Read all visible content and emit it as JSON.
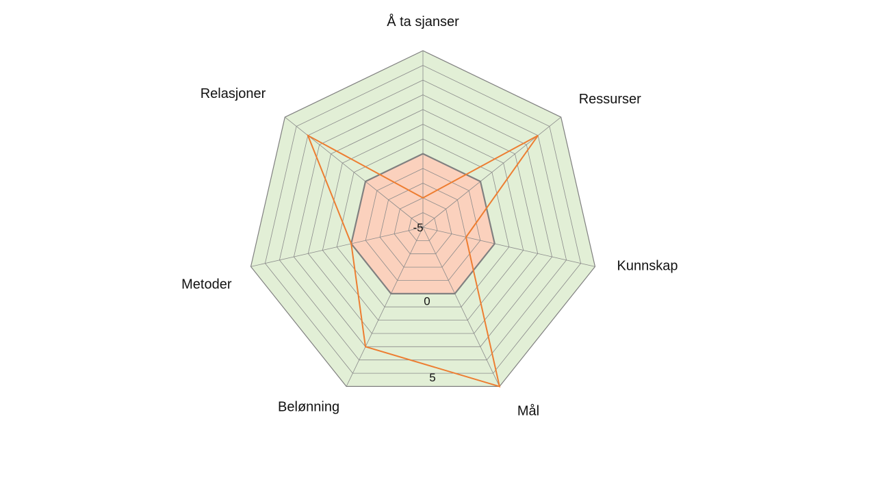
{
  "chart_data": {
    "type": "radar",
    "categories": [
      "Å ta sjanser",
      "Ressurser",
      "Kunnskap",
      "Mål",
      "Belønning",
      "Metoder",
      "Relasjoner"
    ],
    "rlim": [
      -5,
      7
    ],
    "tick_labels": [
      "-5",
      "0",
      "5"
    ],
    "grid": true,
    "legend": "none",
    "bands": [
      {
        "from": -5,
        "to": 0,
        "color": "#fbd1bd"
      },
      {
        "from": 0,
        "to": 7,
        "color": "#e2efd6"
      }
    ],
    "series": [
      {
        "values": [
          0,
          0,
          0,
          0,
          0,
          0,
          0
        ],
        "color": "#808080"
      },
      {
        "values": [
          -3,
          5,
          -2,
          7,
          4,
          0,
          5
        ],
        "color": "#ed7d31"
      }
    ]
  },
  "colors": {
    "grid": "#8a8a8a",
    "outer_frame": "#7f7f7f"
  }
}
